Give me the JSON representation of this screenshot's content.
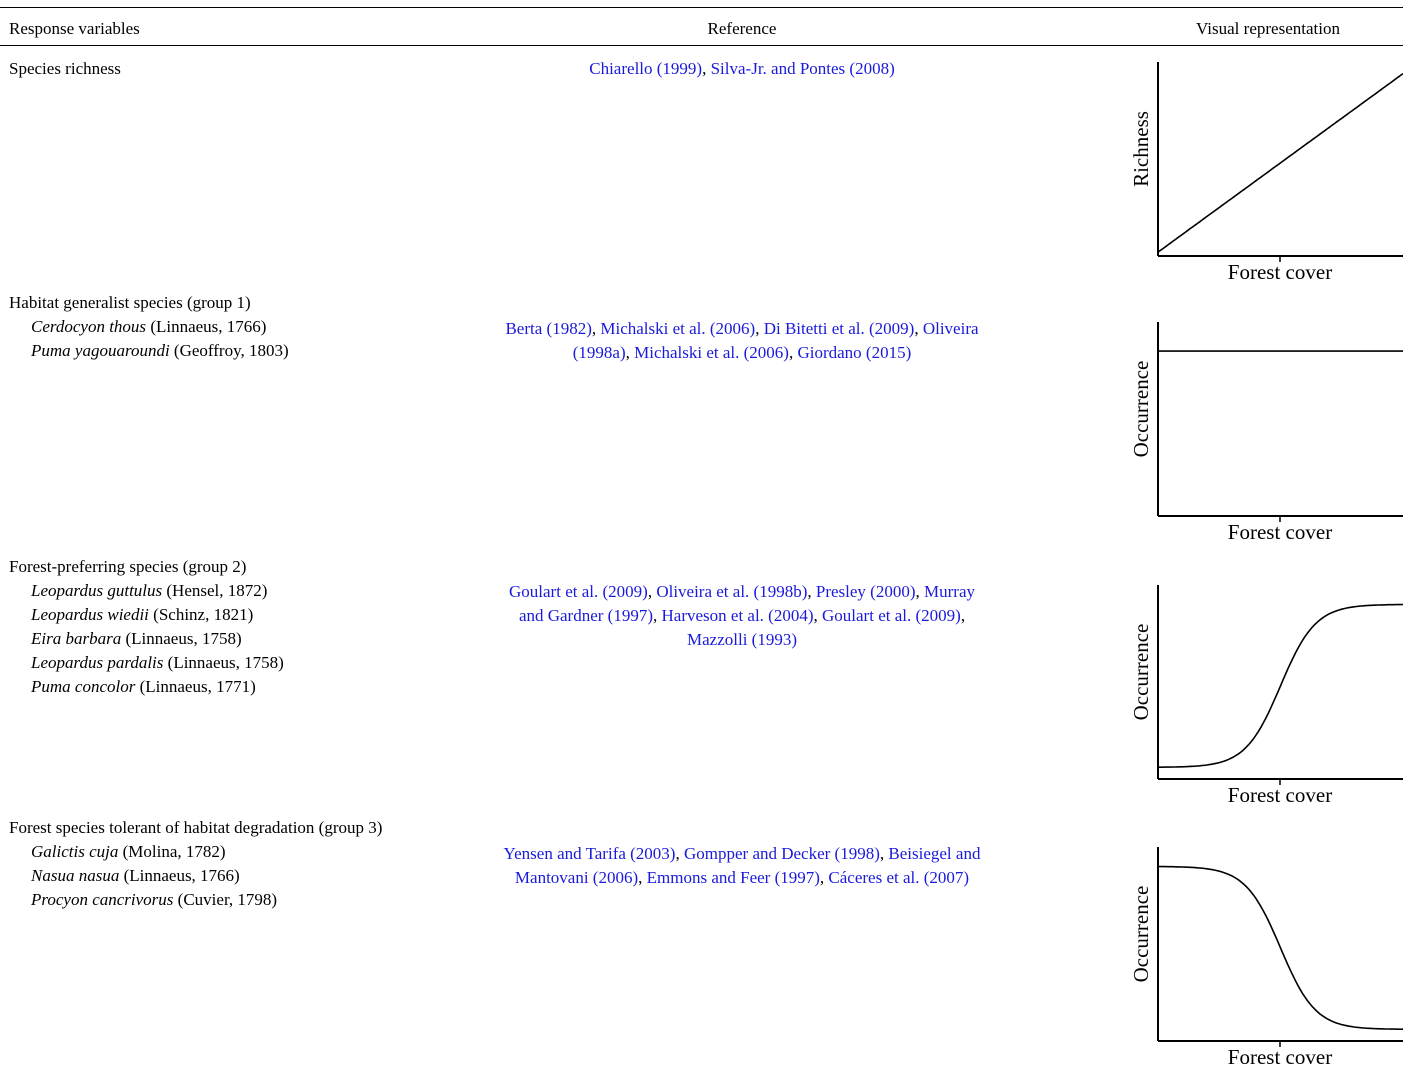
{
  "header": {
    "col1": "Response variables",
    "col2": "Reference",
    "col3": "Visual representation"
  },
  "rows": [
    {
      "title": "Species richness",
      "species": [],
      "ref_lines": [
        [
          {
            "t": "Chiarello (1999)",
            "link": true
          },
          {
            "t": ", ",
            "link": false
          },
          {
            "t": "Silva-Jr. and Pontes (2008)",
            "link": true
          }
        ]
      ],
      "plot": {
        "ylabel": "Richness",
        "xlabel": "Forest cover",
        "shape": "linear-increase"
      }
    },
    {
      "title": "Habitat generalist species (group 1)",
      "species": [
        {
          "name": "Cerdocyon thous",
          "auth": " (Linnaeus, 1766)"
        },
        {
          "name": "Puma yagouaroundi",
          "auth": " (Geoffroy, 1803)"
        }
      ],
      "ref_lines": [
        [
          {
            "t": "Berta (1982)",
            "link": true
          },
          {
            "t": ", ",
            "link": false
          },
          {
            "t": "Michalski et al. (2006)",
            "link": true
          },
          {
            "t": ", ",
            "link": false
          },
          {
            "t": "Di Bitetti et al. (2009)",
            "link": true
          },
          {
            "t": ", ",
            "link": false
          },
          {
            "t": "Oliveira",
            "link": true
          }
        ],
        [
          {
            "t": "(1998a)",
            "link": true
          },
          {
            "t": ", ",
            "link": false
          },
          {
            "t": "Michalski et al. (2006)",
            "link": true
          },
          {
            "t": ", ",
            "link": false
          },
          {
            "t": "Giordano (2015)",
            "link": true
          }
        ]
      ],
      "plot": {
        "ylabel": "Occurrence",
        "xlabel": "Forest cover",
        "shape": "flat"
      }
    },
    {
      "title": "Forest-preferring species (group 2)",
      "species": [
        {
          "name": "Leopardus guttulus",
          "auth": " (Hensel, 1872)"
        },
        {
          "name": "Leopardus wiedii",
          "auth": " (Schinz, 1821)"
        },
        {
          "name": "Eira barbara",
          "auth": " (Linnaeus, 1758)"
        },
        {
          "name": "Leopardus pardalis",
          "auth": " (Linnaeus, 1758)"
        },
        {
          "name": "Puma concolor",
          "auth": " (Linnaeus, 1771)"
        }
      ],
      "ref_lines": [
        [
          {
            "t": "Goulart et al. (2009)",
            "link": true
          },
          {
            "t": ", ",
            "link": false
          },
          {
            "t": "Oliveira et al. (1998b)",
            "link": true
          },
          {
            "t": ", ",
            "link": false
          },
          {
            "t": "Presley (2000)",
            "link": true
          },
          {
            "t": ", ",
            "link": false
          },
          {
            "t": "Murray",
            "link": true
          }
        ],
        [
          {
            "t": "and Gardner (1997)",
            "link": true
          },
          {
            "t": ", ",
            "link": false
          },
          {
            "t": "Harveson et al. (2004)",
            "link": true
          },
          {
            "t": ", ",
            "link": false
          },
          {
            "t": "Goulart et al. (2009)",
            "link": true
          },
          {
            "t": ",",
            "link": false
          }
        ],
        [
          {
            "t": "Mazzolli (1993)",
            "link": true
          }
        ]
      ],
      "plot": {
        "ylabel": "Occurrence",
        "xlabel": "Forest cover",
        "shape": "sigmoid-increase"
      }
    },
    {
      "title": "Forest species tolerant of habitat degradation (group 3)",
      "species": [
        {
          "name": "Galictis cuja",
          "auth": " (Molina, 1782)"
        },
        {
          "name": "Nasua nasua",
          "auth": " (Linnaeus, 1766)"
        },
        {
          "name": "Procyon cancrivorus",
          "auth": " (Cuvier, 1798)"
        }
      ],
      "ref_lines": [
        [
          {
            "t": "Yensen and Tarifa (2003)",
            "link": true
          },
          {
            "t": ", ",
            "link": false
          },
          {
            "t": "Gompper and Decker (1998)",
            "link": true
          },
          {
            "t": ", ",
            "link": false
          },
          {
            "t": "Beisiegel and",
            "link": true
          }
        ],
        [
          {
            "t": "Mantovani (2006)",
            "link": true
          },
          {
            "t": ", ",
            "link": false
          },
          {
            "t": "Emmons and Feer (1997)",
            "link": true
          },
          {
            "t": ", ",
            "link": false
          },
          {
            "t": "Cáceres et al. (2007)",
            "link": true
          }
        ]
      ],
      "plot": {
        "ylabel": "Occurrence",
        "xlabel": "Forest cover",
        "shape": "sigmoid-decrease"
      }
    }
  ]
}
